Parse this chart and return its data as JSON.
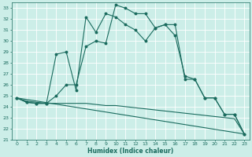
{
  "xlabel": "Humidex (Indice chaleur)",
  "bg_color": "#cceee8",
  "grid_color": "#ffffff",
  "line_color": "#1a6b5e",
  "xlim": [
    -0.5,
    23.5
  ],
  "ylim": [
    21,
    33.5
  ],
  "yticks": [
    21,
    22,
    23,
    24,
    25,
    26,
    27,
    28,
    29,
    30,
    31,
    32,
    33
  ],
  "xticks": [
    0,
    1,
    2,
    3,
    4,
    5,
    6,
    7,
    8,
    9,
    10,
    11,
    12,
    13,
    14,
    15,
    16,
    17,
    18,
    19,
    20,
    21,
    22,
    23
  ],
  "series1_x": [
    0,
    1,
    2,
    3,
    4,
    5,
    6,
    7,
    8,
    9,
    10,
    11,
    12,
    13,
    14,
    15,
    16,
    17,
    18,
    19,
    20,
    21,
    22,
    23
  ],
  "series1_y": [
    24.8,
    24.4,
    24.3,
    24.3,
    25.0,
    26.0,
    26.0,
    29.5,
    30.0,
    29.8,
    33.3,
    33.0,
    32.5,
    32.5,
    31.2,
    31.5,
    30.5,
    26.8,
    26.5,
    24.8,
    24.8,
    23.3,
    23.3,
    21.5
  ],
  "series2_x": [
    0,
    1,
    2,
    3,
    4,
    5,
    6,
    7,
    8,
    9,
    10,
    11,
    12,
    13,
    14,
    15,
    16,
    17,
    18,
    19,
    20,
    21,
    22,
    23
  ],
  "series2_y": [
    24.8,
    24.4,
    24.3,
    24.3,
    28.8,
    29.0,
    25.5,
    32.2,
    30.8,
    32.5,
    32.2,
    31.5,
    31.0,
    30.0,
    31.2,
    31.5,
    31.5,
    26.5,
    26.5,
    24.8,
    24.8,
    23.3,
    23.3,
    21.5
  ],
  "series3_x": [
    0,
    1,
    2,
    3,
    4,
    5,
    6,
    7,
    8,
    9,
    10,
    11,
    12,
    13,
    14,
    15,
    16,
    17,
    18,
    19,
    20,
    21,
    22,
    23
  ],
  "series3_y": [
    24.8,
    24.5,
    24.4,
    24.3,
    24.3,
    24.3,
    24.3,
    24.3,
    24.2,
    24.1,
    24.1,
    24.0,
    23.9,
    23.8,
    23.7,
    23.6,
    23.5,
    23.4,
    23.3,
    23.2,
    23.1,
    23.0,
    22.9,
    21.5
  ],
  "series4_x": [
    0,
    23
  ],
  "series4_y": [
    24.8,
    21.5
  ]
}
